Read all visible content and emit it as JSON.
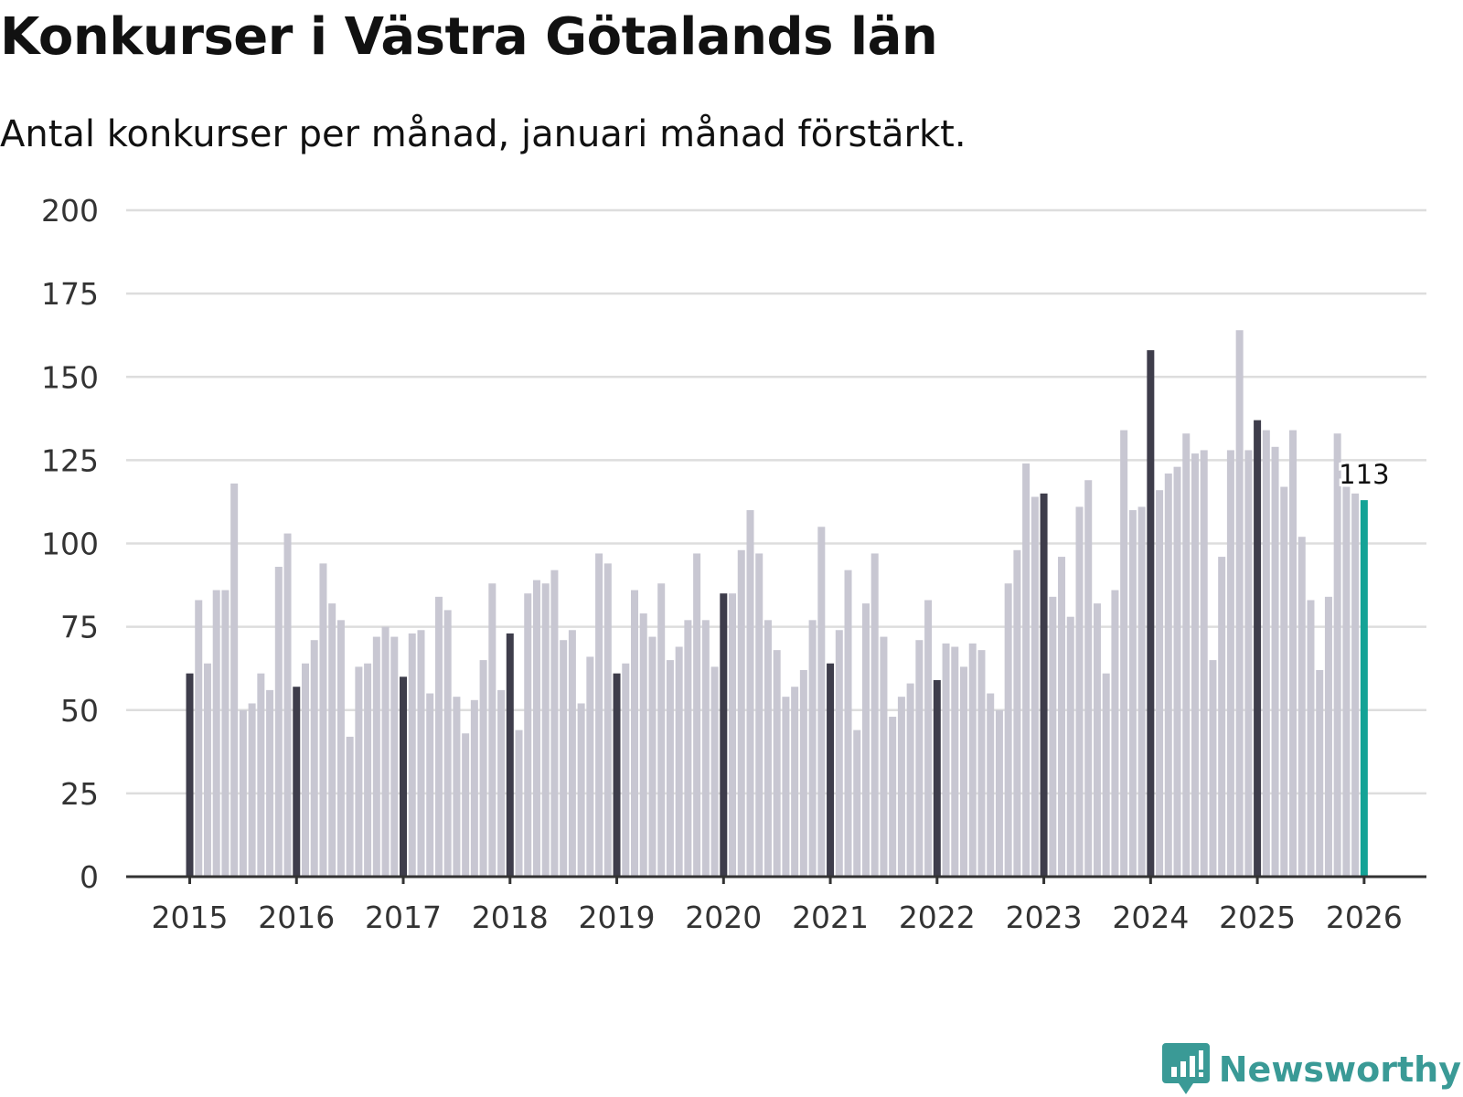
{
  "title": "Konkurser i Västra Götalands län",
  "subtitle": "Antal konkurser per månad, januari månad förstärkt.",
  "brand": "Newsworthy",
  "colors": {
    "bar": "#c8c7d2",
    "january": "#3e3d4b",
    "latest": "#13a396",
    "grid": "#dddddd",
    "axis": "#333333",
    "brand": "#3a9a96"
  },
  "chart_data": {
    "type": "bar",
    "title": "Konkurser i Västra Götalands län",
    "subtitle": "Antal konkurser per månad, januari månad förstärkt.",
    "xlabel": "",
    "ylabel": "",
    "ylim": [
      0,
      200
    ],
    "yticks": [
      0,
      25,
      50,
      75,
      100,
      125,
      150,
      175,
      200
    ],
    "start": "2015-01",
    "xtick_labels": [
      "2015",
      "2016",
      "2017",
      "2018",
      "2019",
      "2020",
      "2021",
      "2022",
      "2023",
      "2024",
      "2025",
      "2026"
    ],
    "values": [
      61,
      83,
      64,
      86,
      86,
      118,
      50,
      52,
      61,
      56,
      93,
      103,
      57,
      64,
      71,
      94,
      82,
      77,
      42,
      63,
      64,
      72,
      75,
      72,
      60,
      73,
      74,
      55,
      84,
      80,
      54,
      43,
      53,
      65,
      88,
      56,
      73,
      44,
      85,
      89,
      88,
      92,
      71,
      74,
      52,
      66,
      97,
      94,
      61,
      64,
      86,
      79,
      72,
      88,
      65,
      69,
      77,
      97,
      77,
      63,
      85,
      85,
      98,
      110,
      97,
      77,
      68,
      54,
      57,
      62,
      77,
      105,
      64,
      74,
      92,
      44,
      82,
      97,
      72,
      48,
      54,
      58,
      71,
      83,
      59,
      70,
      69,
      63,
      70,
      68,
      55,
      50,
      88,
      98,
      124,
      114,
      115,
      84,
      96,
      78,
      111,
      119,
      82,
      61,
      86,
      134,
      110,
      111,
      158,
      116,
      121,
      123,
      133,
      127,
      128,
      65,
      96,
      128,
      164,
      128,
      137,
      134,
      129,
      117,
      134,
      102,
      83,
      62,
      84,
      133,
      117,
      115,
      113
    ],
    "highlight": "January bars dark; latest bar teal",
    "annotation": "113"
  }
}
